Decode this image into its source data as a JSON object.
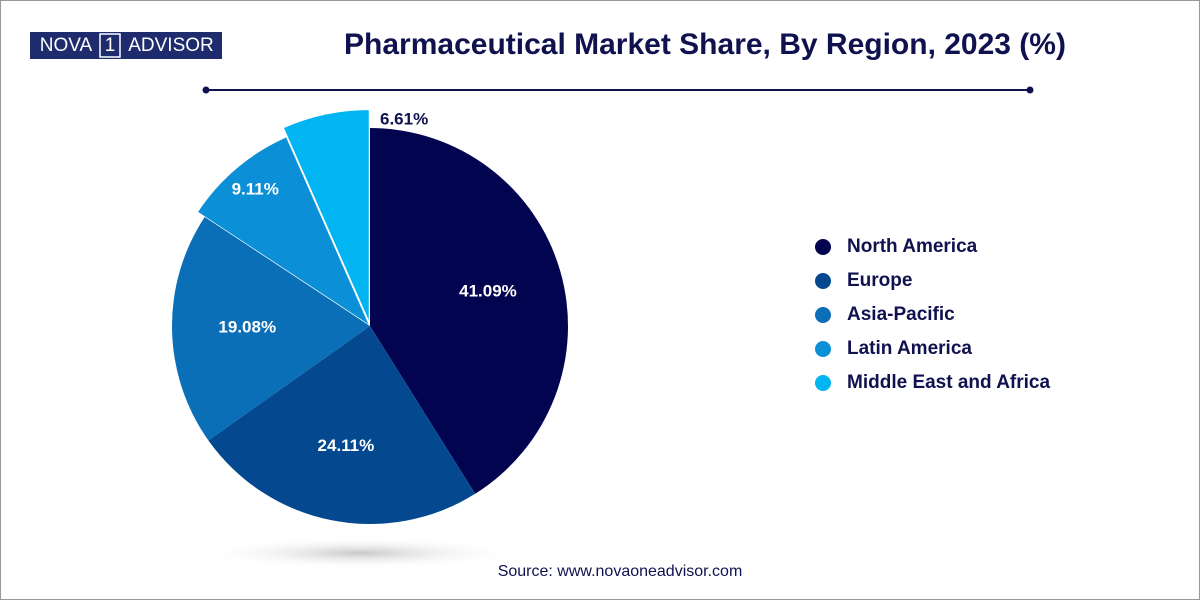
{
  "logo": {
    "left": "NOVA",
    "mark": "1",
    "right": "ADVISOR"
  },
  "chart_data": {
    "type": "pie",
    "title": "Pharmaceutical Market Share, By Region, 2023 (%)",
    "categories": [
      "North America",
      "Europe",
      "Asia-Pacific",
      "Latin America",
      "Middle East and Africa"
    ],
    "values": [
      41.09,
      24.11,
      19.08,
      9.11,
      6.61
    ],
    "value_labels": [
      "41.09%",
      "24.11%",
      "19.08%",
      "9.11%",
      "6.61%"
    ],
    "colors": [
      "#03044f",
      "#04498f",
      "#0b6fb8",
      "#0b90d8",
      "#00b5f1"
    ],
    "legend": "right"
  },
  "source": "Source: www.novaoneadvisor.com"
}
